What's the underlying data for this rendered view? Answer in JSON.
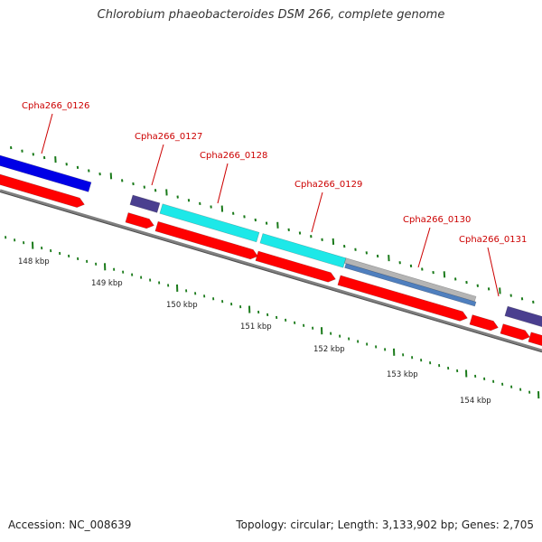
{
  "title": "Chlorobium phaeobacteroides DSM 266, complete genome",
  "footer": {
    "accession": "Accession: NC_008639",
    "summary": "Topology: circular; Length: 3,133,902 bp; Genes: 2,705"
  },
  "colors": {
    "cds": "#ff0000",
    "blue": "#0000e6",
    "navy": "#4a3f8f",
    "cyan": "#1de8e8",
    "gray": "#b4b4b4",
    "steel": "#4f7fbe",
    "tick": "#1a7a1a",
    "backbone": "#808080",
    "label": "#cc0000"
  },
  "ruler": [
    {
      "label": "148 kbp"
    },
    {
      "label": "149 kbp"
    },
    {
      "label": "150 kbp"
    },
    {
      "label": "151 kbp"
    },
    {
      "label": "152 kbp"
    },
    {
      "label": "153 kbp"
    },
    {
      "label": "154 kbp"
    }
  ],
  "genes": [
    {
      "label": "Cpha266_0126"
    },
    {
      "label": "Cpha266_0127"
    },
    {
      "label": "Cpha266_0128"
    },
    {
      "label": "Cpha266_0129"
    },
    {
      "label": "Cpha266_0130"
    },
    {
      "label": "Cpha266_0131"
    }
  ]
}
